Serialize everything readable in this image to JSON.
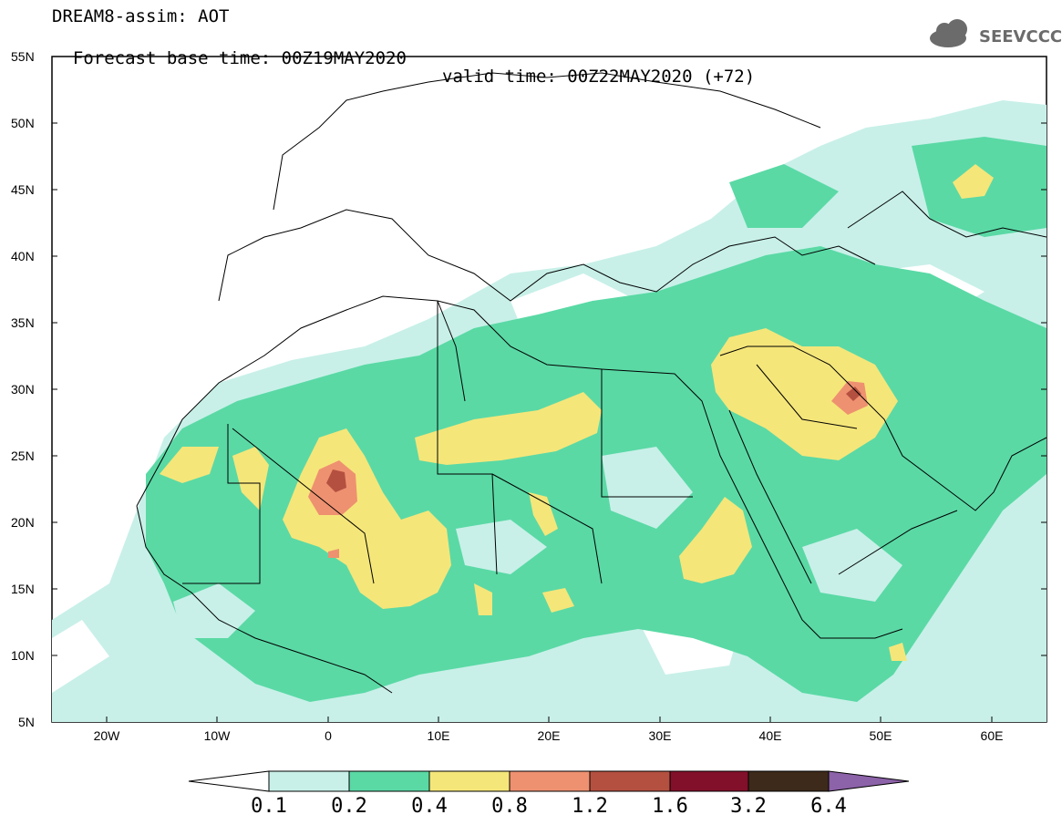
{
  "header": {
    "line1": "DREAM8-assim: AOT",
    "base_time": "Forecast base time: 00Z19MAY2020",
    "valid_time": "valid time: 00Z22MAY2020 (+72)"
  },
  "logo": {
    "text": "SEEVCCC",
    "icon": "cloud-icon"
  },
  "map": {
    "lat_labels": [
      "55N",
      "50N",
      "45N",
      "40N",
      "35N",
      "30N",
      "25N",
      "20N",
      "15N",
      "10N",
      "5N"
    ],
    "lon_labels": [
      "20W",
      "10W",
      "0",
      "10E",
      "20E",
      "30E",
      "40E",
      "50E",
      "60E"
    ],
    "lon_range": [
      -25,
      65
    ],
    "lat_range": [
      5,
      55
    ],
    "field": "Aerosol Optical Thickness"
  },
  "colorbar": {
    "levels": [
      "0.1",
      "0.2",
      "0.4",
      "0.8",
      "1.2",
      "1.6",
      "3.2",
      "6.4"
    ],
    "colors": [
      "#c8f0e8",
      "#5ad9a5",
      "#f5e67a",
      "#ee9170",
      "#b45040",
      "#82102a",
      "#3d2a1a",
      "#8c62a8"
    ],
    "under_color": "#ffffff"
  }
}
